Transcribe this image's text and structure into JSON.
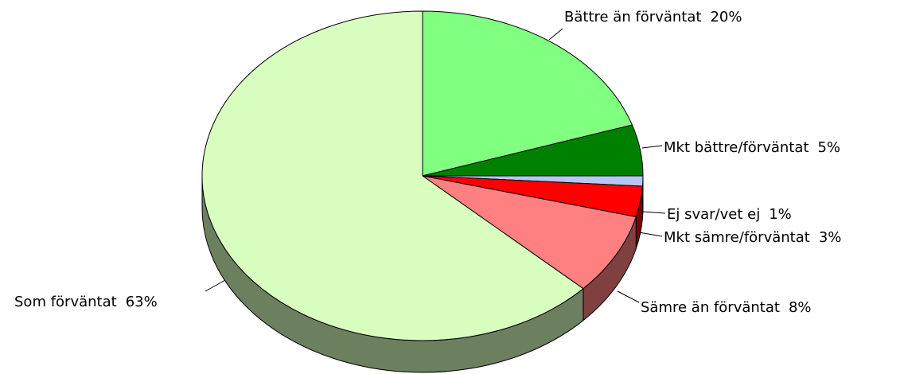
{
  "chart_data": {
    "type": "pie",
    "categories": [
      "Bättre än förväntat",
      "Mkt bättre/förväntat",
      "Ej svar/vet ej",
      "Mkt sämre/förväntat",
      "Sämre än förväntat",
      "Som förväntat"
    ],
    "values": [
      20,
      5,
      1,
      3,
      8,
      63
    ],
    "value_labels": [
      "20%",
      "5%",
      "1%",
      "3%",
      "8%",
      "63%"
    ],
    "colors": [
      "#80ff80",
      "#008000",
      "#b4c8f0",
      "#ff0000",
      "#ff8080",
      "#d8ffc0"
    ]
  }
}
